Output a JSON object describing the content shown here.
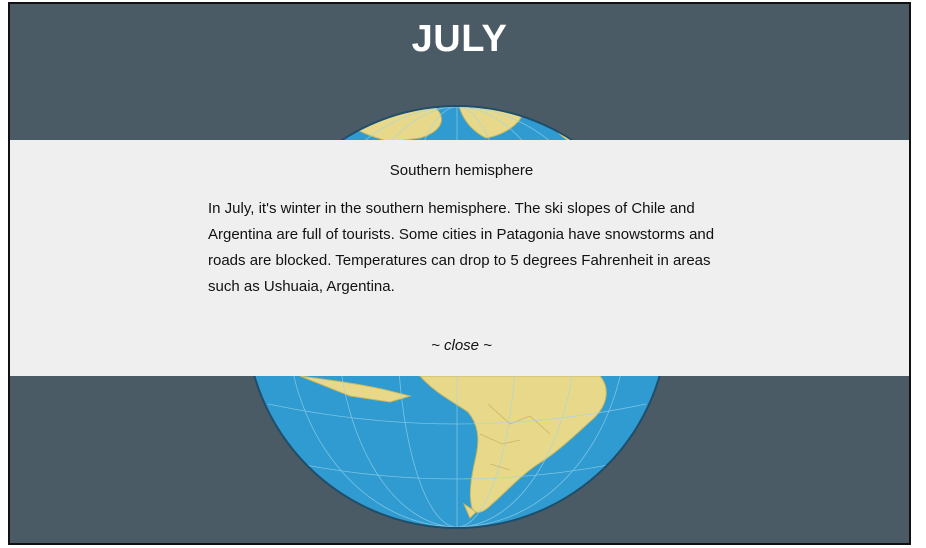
{
  "title": "JULY",
  "panel": {
    "heading": "Southern hemisphere",
    "body": "In July, it's winter in the southern hemisphere. The ski slopes of Chile and Argentina are full of tourists. Some cities in Patagonia have snowstorms and roads are blocked. Temperatures can drop to 5 degrees Fahrenheit in areas such as Ushuaia, Argentina.",
    "close_label": "~ close ~"
  },
  "colors": {
    "background": "#4b5b66",
    "ocean": "#2f9bd0",
    "land": "#e8d98a",
    "panel": "#efefef"
  },
  "icons": {
    "globe": "earth-globe-icon"
  }
}
